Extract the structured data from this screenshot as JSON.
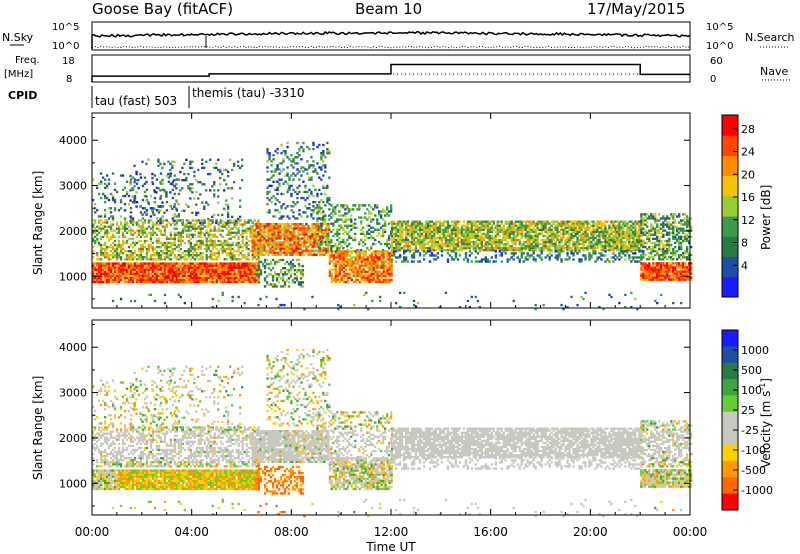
{
  "header": {
    "station": "Goose Bay (fitACF)",
    "beam": "Beam 10",
    "date": "17/May/2015"
  },
  "summary": {
    "nsky_label": "N.Sky",
    "nsky_ticks": [
      "10^5",
      "10^0"
    ],
    "nsearch_label": "N.Search",
    "nsearch_ticks": [
      "10^5",
      "10^0"
    ],
    "freq_label": "Freq.",
    "freq_unit": "[MHz]",
    "freq_ticks": [
      "18",
      "8"
    ],
    "nave_label": "Nave",
    "nave_ticks": [
      "60",
      "0"
    ],
    "cpid_label": "CPID",
    "cpid_segments": [
      {
        "name": "tau (fast) 503",
        "start": 0.0,
        "end": 3.9
      },
      {
        "name": "themis (tau) -3310",
        "start": 3.9,
        "end": 24.0
      }
    ],
    "freq_steps": [
      {
        "start": 0.0,
        "end": 4.7,
        "value": 10.2
      },
      {
        "start": 4.7,
        "end": 12.0,
        "value": 11.0
      },
      {
        "start": 12.0,
        "end": 22.0,
        "value": 14.5
      },
      {
        "start": 22.0,
        "end": 24.0,
        "value": 10.8
      }
    ]
  },
  "colors": {
    "power": [
      "#1a1aff",
      "#1f4fa5",
      "#2a7a45",
      "#3e9a4a",
      "#9acd32",
      "#f4c20d",
      "#ff8c00",
      "#ff4500",
      "#ff0000"
    ],
    "velocity_high": [
      "#1a1aff",
      "#1f4fa5",
      "#2a7a45",
      "#3fa53f",
      "#66cc33"
    ],
    "velocity_ground": "#c8c8c0",
    "velocity_low": [
      "#ffd000",
      "#ff9900",
      "#ff6600",
      "#ff0000"
    ]
  },
  "chart_data": [
    {
      "type": "heatmap",
      "name": "power-panel",
      "xlabel": "Time UT",
      "ylabel": "Slant Range [km]",
      "xlim": [
        0,
        24
      ],
      "ylim": [
        300,
        4600
      ],
      "x_ticks": [
        "00:00",
        "04:00",
        "08:00",
        "12:00",
        "16:00",
        "20:00",
        "00:00"
      ],
      "x_tick_values": [
        0,
        4,
        8,
        12,
        16,
        20,
        24
      ],
      "y_ticks": [
        1000,
        2000,
        3000,
        4000
      ],
      "colorbar": {
        "label": "Power [dB]",
        "ticks": [
          "28",
          "24",
          "20",
          "16",
          "12",
          "8",
          "4"
        ]
      }
    },
    {
      "type": "heatmap",
      "name": "velocity-panel",
      "xlabel": "Time UT",
      "ylabel": "Slant Range [km]",
      "xlim": [
        0,
        24
      ],
      "ylim": [
        300,
        4600
      ],
      "x_ticks": [
        "00:00",
        "04:00",
        "08:00",
        "12:00",
        "16:00",
        "20:00",
        "00:00"
      ],
      "x_tick_values": [
        0,
        4,
        8,
        12,
        16,
        20,
        24
      ],
      "y_ticks": [
        1000,
        2000,
        3000,
        4000
      ],
      "colorbar": {
        "label": "Velocity [m s",
        "label_sup": "-1",
        "label_end": "]",
        "ticks": [
          "1000",
          "500",
          "100",
          "25",
          "-25",
          "-100",
          "-500",
          "-1000"
        ]
      }
    }
  ]
}
